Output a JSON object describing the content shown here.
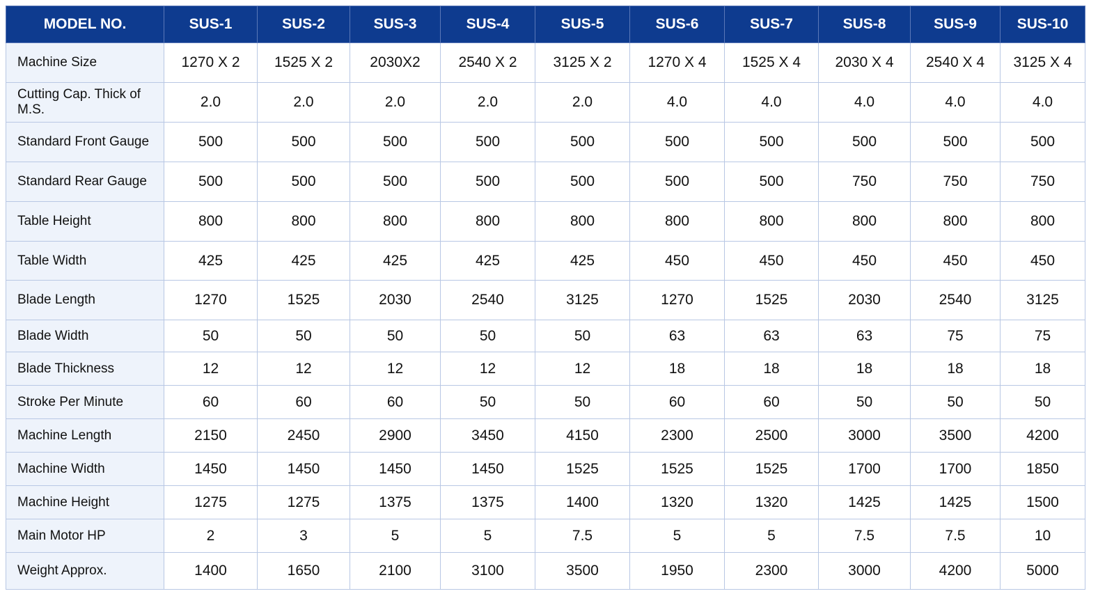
{
  "table": {
    "header": [
      "MODEL NO.",
      "SUS-1",
      "SUS-2",
      "SUS-3",
      "SUS-4",
      "SUS-5",
      "SUS-6",
      "SUS-7",
      "SUS-8",
      "SUS-9",
      "SUS-10"
    ],
    "rows": [
      [
        "Machine Size",
        "1270 X 2",
        "1525 X 2",
        "2030X2",
        "2540 X 2",
        "3125 X 2",
        "1270 X 4",
        "1525 X 4",
        "2030 X 4",
        "2540 X 4",
        "3125 X 4"
      ],
      [
        "Cutting Cap. Thick of M.S.",
        "2.0",
        "2.0",
        "2.0",
        "2.0",
        "2.0",
        "4.0",
        "4.0",
        "4.0",
        "4.0",
        "4.0"
      ],
      [
        "Standard Front Gauge",
        "500",
        "500",
        "500",
        "500",
        "500",
        "500",
        "500",
        "500",
        "500",
        "500"
      ],
      [
        "Standard Rear Gauge",
        "500",
        "500",
        "500",
        "500",
        "500",
        "500",
        "500",
        "750",
        "750",
        "750"
      ],
      [
        "Table Height",
        "800",
        "800",
        "800",
        "800",
        "800",
        "800",
        "800",
        "800",
        "800",
        "800"
      ],
      [
        "Table Width",
        "425",
        "425",
        "425",
        "425",
        "425",
        "450",
        "450",
        "450",
        "450",
        "450"
      ],
      [
        "Blade Length",
        "1270",
        "1525",
        "2030",
        "2540",
        "3125",
        "1270",
        "1525",
        "2030",
        "2540",
        "3125"
      ],
      [
        "Blade Width",
        "50",
        "50",
        "50",
        "50",
        "50",
        "63",
        "63",
        "63",
        "75",
        "75"
      ],
      [
        "Blade Thickness",
        "12",
        "12",
        "12",
        "12",
        "12",
        "18",
        "18",
        "18",
        "18",
        "18"
      ],
      [
        "Stroke Per Minute",
        "60",
        "60",
        "60",
        "50",
        "50",
        "60",
        "60",
        "50",
        "50",
        "50"
      ],
      [
        "Machine Length",
        "2150",
        "2450",
        "2900",
        "3450",
        "4150",
        "2300",
        "2500",
        "3000",
        "3500",
        "4200"
      ],
      [
        "Machine Width",
        "1450",
        "1450",
        "1450",
        "1450",
        "1525",
        "1525",
        "1525",
        "1700",
        "1700",
        "1850"
      ],
      [
        "Machine Height",
        "1275",
        "1275",
        "1375",
        "1375",
        "1400",
        "1320",
        "1320",
        "1425",
        "1425",
        "1500"
      ],
      [
        "Main Motor HP",
        "2",
        "3",
        "5",
        "5",
        "7.5",
        "5",
        "5",
        "7.5",
        "7.5",
        "10"
      ],
      [
        "Weight Approx.",
        "1400",
        "1650",
        "2100",
        "3100",
        "3500",
        "1950",
        "2300",
        "3000",
        "4200",
        "5000"
      ]
    ]
  }
}
